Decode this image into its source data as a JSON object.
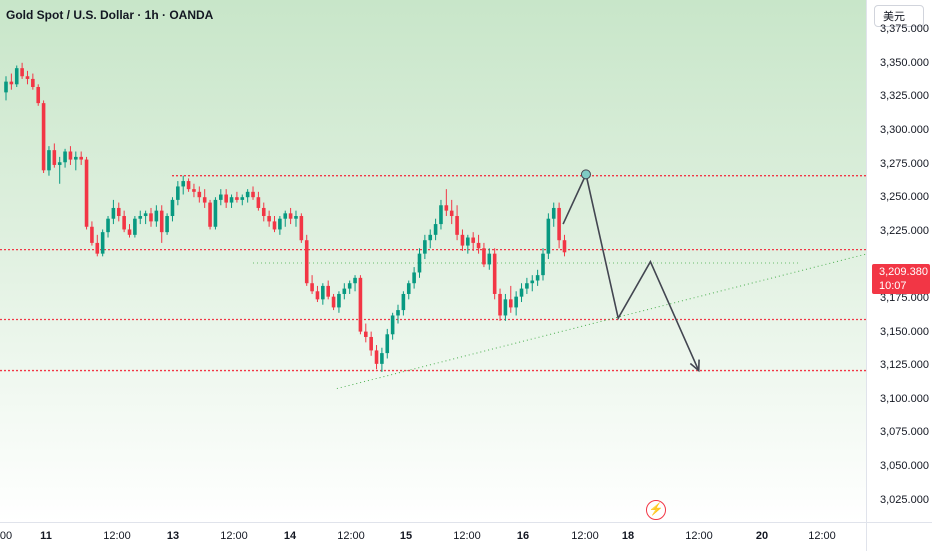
{
  "header": {
    "title": "Gold Spot / U.S. Dollar · 1h · OANDA"
  },
  "currency_button": {
    "label": "美元"
  },
  "price_axis": {
    "ticks": [
      "3,375.000",
      "3,350.000",
      "3,325.000",
      "3,300.000",
      "3,275.000",
      "3,250.000",
      "3,225.000",
      "3,175.000",
      "3,150.000",
      "3,125.000",
      "3,100.000",
      "3,075.000",
      "3,050.000",
      "3,025.000"
    ]
  },
  "time_axis": {
    "labels": [
      "00",
      "11",
      "12:00",
      "13",
      "12:00",
      "14",
      "12:00",
      "15",
      "12:00",
      "16",
      "12:00",
      "18",
      "12:00",
      "20",
      "12:00"
    ],
    "bold": [
      false,
      true,
      false,
      true,
      false,
      true,
      false,
      true,
      false,
      true,
      false,
      true,
      false,
      true,
      false
    ]
  },
  "last_price": {
    "value": "3,209.380",
    "countdown": "10:07",
    "color": "#f23645"
  },
  "flash_icon": {
    "glyph": "⚡",
    "name": "flash-icon"
  },
  "colors": {
    "up": "#089981",
    "down": "#f23645",
    "level_line": "#f23645",
    "trend_line": "#4caf50",
    "projection": "#434651"
  },
  "chart_data": {
    "type": "candlestick",
    "symbol": "Gold Spot / U.S. Dollar",
    "interval": "1h",
    "source": "OANDA",
    "ylim": [
      3025,
      3392
    ],
    "candles": [
      [
        3328,
        3340,
        3322,
        3336
      ],
      [
        3336,
        3342,
        3330,
        3334
      ],
      [
        3334,
        3348,
        3332,
        3346
      ],
      [
        3346,
        3350,
        3338,
        3340
      ],
      [
        3340,
        3344,
        3334,
        3338
      ],
      [
        3338,
        3342,
        3330,
        3332
      ],
      [
        3332,
        3334,
        3318,
        3320
      ],
      [
        3320,
        3322,
        3268,
        3270
      ],
      [
        3270,
        3288,
        3266,
        3285
      ],
      [
        3285,
        3290,
        3272,
        3274
      ],
      [
        3274,
        3280,
        3260,
        3276
      ],
      [
        3276,
        3286,
        3272,
        3284
      ],
      [
        3284,
        3288,
        3274,
        3278
      ],
      [
        3278,
        3284,
        3270,
        3280
      ],
      [
        3280,
        3284,
        3274,
        3278
      ],
      [
        3278,
        3280,
        3226,
        3228
      ],
      [
        3228,
        3232,
        3214,
        3216
      ],
      [
        3216,
        3222,
        3206,
        3208
      ],
      [
        3208,
        3226,
        3206,
        3224
      ],
      [
        3224,
        3236,
        3220,
        3234
      ],
      [
        3234,
        3248,
        3230,
        3242
      ],
      [
        3242,
        3246,
        3232,
        3236
      ],
      [
        3236,
        3240,
        3224,
        3226
      ],
      [
        3226,
        3230,
        3220,
        3222
      ],
      [
        3222,
        3236,
        3220,
        3234
      ],
      [
        3234,
        3240,
        3230,
        3236
      ],
      [
        3236,
        3240,
        3230,
        3238
      ],
      [
        3238,
        3242,
        3228,
        3232
      ],
      [
        3232,
        3244,
        3228,
        3240
      ],
      [
        3240,
        3244,
        3216,
        3224
      ],
      [
        3224,
        3238,
        3222,
        3236
      ],
      [
        3236,
        3250,
        3232,
        3248
      ],
      [
        3248,
        3262,
        3244,
        3258
      ],
      [
        3258,
        3266,
        3252,
        3262
      ],
      [
        3262,
        3264,
        3254,
        3256
      ],
      [
        3256,
        3260,
        3250,
        3254
      ],
      [
        3254,
        3258,
        3246,
        3250
      ],
      [
        3250,
        3256,
        3242,
        3246
      ],
      [
        3246,
        3248,
        3226,
        3228
      ],
      [
        3228,
        3250,
        3226,
        3248
      ],
      [
        3248,
        3256,
        3244,
        3252
      ],
      [
        3252,
        3256,
        3242,
        3246
      ],
      [
        3246,
        3252,
        3242,
        3250
      ],
      [
        3250,
        3254,
        3246,
        3248
      ],
      [
        3248,
        3252,
        3244,
        3250
      ],
      [
        3250,
        3256,
        3246,
        3254
      ],
      [
        3254,
        3258,
        3248,
        3250
      ],
      [
        3250,
        3254,
        3240,
        3242
      ],
      [
        3242,
        3246,
        3232,
        3236
      ],
      [
        3236,
        3240,
        3228,
        3232
      ],
      [
        3232,
        3236,
        3224,
        3226
      ],
      [
        3226,
        3236,
        3222,
        3234
      ],
      [
        3234,
        3240,
        3228,
        3238
      ],
      [
        3238,
        3242,
        3230,
        3234
      ],
      [
        3234,
        3240,
        3228,
        3236
      ],
      [
        3236,
        3238,
        3216,
        3218
      ],
      [
        3218,
        3222,
        3184,
        3186
      ],
      [
        3186,
        3192,
        3178,
        3180
      ],
      [
        3180,
        3184,
        3172,
        3174
      ],
      [
        3174,
        3186,
        3170,
        3184
      ],
      [
        3184,
        3188,
        3174,
        3176
      ],
      [
        3176,
        3178,
        3166,
        3168
      ],
      [
        3168,
        3180,
        3164,
        3178
      ],
      [
        3178,
        3186,
        3174,
        3182
      ],
      [
        3182,
        3188,
        3178,
        3186
      ],
      [
        3186,
        3192,
        3180,
        3190
      ],
      [
        3190,
        3192,
        3148,
        3150
      ],
      [
        3150,
        3156,
        3142,
        3146
      ],
      [
        3146,
        3150,
        3132,
        3136
      ],
      [
        3136,
        3140,
        3122,
        3126
      ],
      [
        3126,
        3138,
        3120,
        3134
      ],
      [
        3134,
        3152,
        3130,
        3148
      ],
      [
        3148,
        3164,
        3144,
        3162
      ],
      [
        3162,
        3170,
        3156,
        3166
      ],
      [
        3166,
        3180,
        3162,
        3178
      ],
      [
        3178,
        3188,
        3174,
        3186
      ],
      [
        3186,
        3198,
        3182,
        3194
      ],
      [
        3194,
        3212,
        3190,
        3208
      ],
      [
        3208,
        3222,
        3204,
        3218
      ],
      [
        3218,
        3226,
        3212,
        3222
      ],
      [
        3222,
        3234,
        3218,
        3230
      ],
      [
        3230,
        3248,
        3226,
        3244
      ],
      [
        3244,
        3256,
        3236,
        3240
      ],
      [
        3240,
        3248,
        3230,
        3236
      ],
      [
        3236,
        3244,
        3218,
        3222
      ],
      [
        3222,
        3226,
        3210,
        3214
      ],
      [
        3214,
        3222,
        3208,
        3220
      ],
      [
        3220,
        3224,
        3210,
        3216
      ],
      [
        3216,
        3222,
        3208,
        3212
      ],
      [
        3212,
        3216,
        3198,
        3200
      ],
      [
        3200,
        3212,
        3196,
        3208
      ],
      [
        3208,
        3212,
        3174,
        3178
      ],
      [
        3178,
        3182,
        3158,
        3162
      ],
      [
        3162,
        3178,
        3158,
        3174
      ],
      [
        3174,
        3184,
        3164,
        3168
      ],
      [
        3168,
        3180,
        3162,
        3176
      ],
      [
        3176,
        3186,
        3172,
        3182
      ],
      [
        3182,
        3190,
        3178,
        3186
      ],
      [
        3186,
        3192,
        3180,
        3188
      ],
      [
        3188,
        3196,
        3184,
        3192
      ],
      [
        3192,
        3212,
        3188,
        3208
      ],
      [
        3208,
        3238,
        3204,
        3234
      ],
      [
        3234,
        3246,
        3228,
        3242
      ],
      [
        3242,
        3246,
        3212,
        3218
      ],
      [
        3218,
        3222,
        3206,
        3209
      ]
    ],
    "levels": [
      3266,
      3211,
      3159,
      3121
    ],
    "trendline": {
      "x": [
        97,
        151
      ],
      "y": [
        3124,
        3212
      ]
    },
    "projection": {
      "x": [
        103,
        108,
        114,
        120,
        129
      ],
      "y": [
        3230,
        3267,
        3160,
        3202,
        3121
      ]
    },
    "marker": {
      "x": 108,
      "y": 3267
    }
  }
}
